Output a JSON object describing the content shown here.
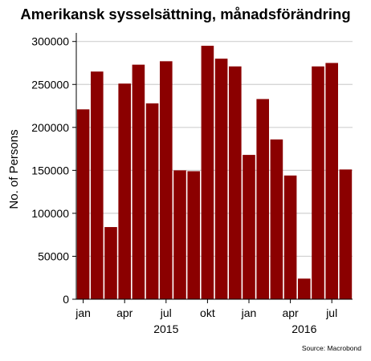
{
  "chart_data": {
    "type": "bar",
    "title": "Amerikansk sysselsättning, månadsförändring",
    "xlabel": "",
    "ylabel": "No. of Persons",
    "ylim": [
      0,
      300000
    ],
    "yticks": [
      0,
      50000,
      100000,
      150000,
      200000,
      250000,
      300000
    ],
    "grid": true,
    "bar_color": "#8b0000",
    "grid_color": "#d0d0d0",
    "x_month_labels": [
      {
        "index": 0,
        "label": "jan"
      },
      {
        "index": 3,
        "label": "apr"
      },
      {
        "index": 6,
        "label": "jul"
      },
      {
        "index": 9,
        "label": "okt"
      },
      {
        "index": 12,
        "label": "jan"
      },
      {
        "index": 15,
        "label": "apr"
      },
      {
        "index": 18,
        "label": "jul"
      }
    ],
    "x_year_labels": [
      {
        "index": 6,
        "label": "2015"
      },
      {
        "index": 16,
        "label": "2016"
      }
    ],
    "values": [
      221000,
      265000,
      84000,
      251000,
      273000,
      228000,
      277000,
      150000,
      149000,
      295000,
      280000,
      271000,
      168000,
      233000,
      186000,
      144000,
      24000,
      271000,
      275000,
      151000
    ]
  },
  "source": "Source: Macrobond"
}
